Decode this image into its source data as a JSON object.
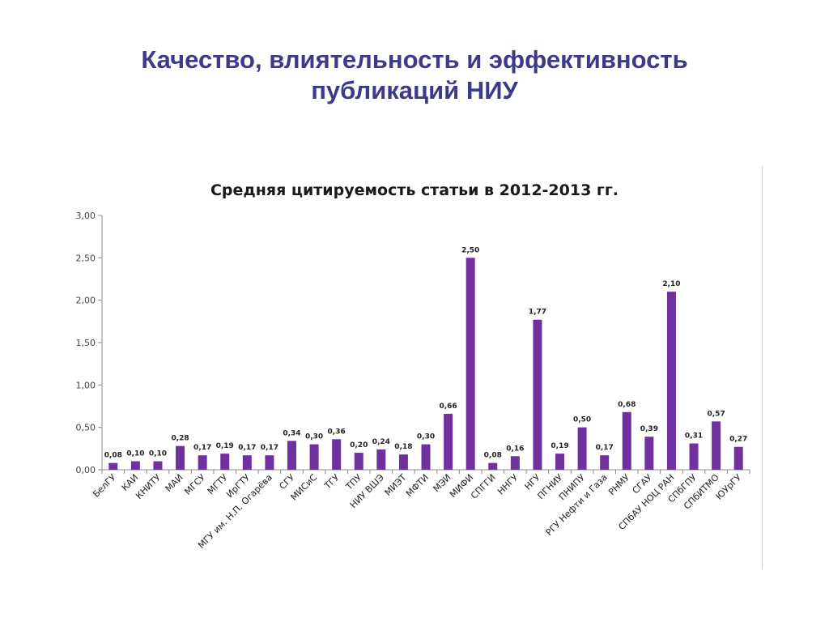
{
  "slide": {
    "title_line1": "Качество, влиятельность и эффективность",
    "title_line2": "публикаций НИУ"
  },
  "colors": {
    "title": "#3d3a8c",
    "bar": "#7030a0",
    "axis": "#888888"
  },
  "chart_data": {
    "type": "bar",
    "title": "Средняя цитируемость статьи в 2012-2013 гг.",
    "xlabel": "",
    "ylabel": "",
    "ylim": [
      0,
      3
    ],
    "yticks": [
      "0,00",
      "0,50",
      "1,00",
      "1,50",
      "2,00",
      "2,50",
      "3,00"
    ],
    "grid": false,
    "legend": "none",
    "categories": [
      "БелГУ",
      "КАИ",
      "КНИТУ",
      "МАИ",
      "МГСУ",
      "МГТУ",
      "ИрГТУ",
      "МГУ им. Н.П. Огарёва",
      "СГУ",
      "МИСиС",
      "ТГУ",
      "ТПУ",
      "НИУ ВШЭ",
      "МИЭТ",
      "МФТИ",
      "МЭИ",
      "МИФИ",
      "СПГГИ",
      "ННГУ",
      "НГУ",
      "ПГНИУ",
      "ПНИПУ",
      "РГУ Нефти и Газа",
      "РНМУ",
      "СГАУ",
      "СПбАУ НОЦ РАН",
      "СПбГПУ",
      "СПбИТМО",
      "ЮУрГУ"
    ],
    "values": [
      0.08,
      0.1,
      0.1,
      0.28,
      0.17,
      0.19,
      0.17,
      0.17,
      0.34,
      0.3,
      0.36,
      0.2,
      0.24,
      0.18,
      0.3,
      0.66,
      2.5,
      0.08,
      0.16,
      1.77,
      0.19,
      0.5,
      0.17,
      0.68,
      0.39,
      2.1,
      0.31,
      0.57,
      0.27
    ],
    "data_labels": [
      "0,08",
      "0,10",
      "0,10",
      "0,28",
      "0,17",
      "0,19",
      "0,17",
      "0,17",
      "0,34",
      "0,30",
      "0,36",
      "0,20",
      "0,24",
      "0,18",
      "0,30",
      "0,66",
      "2,50",
      "0,08",
      "0,16",
      "1,77",
      "0,19",
      "0,50",
      "0,17",
      "0,68",
      "0,39",
      "2,10",
      "0,31",
      "0,57",
      "0,27"
    ]
  }
}
